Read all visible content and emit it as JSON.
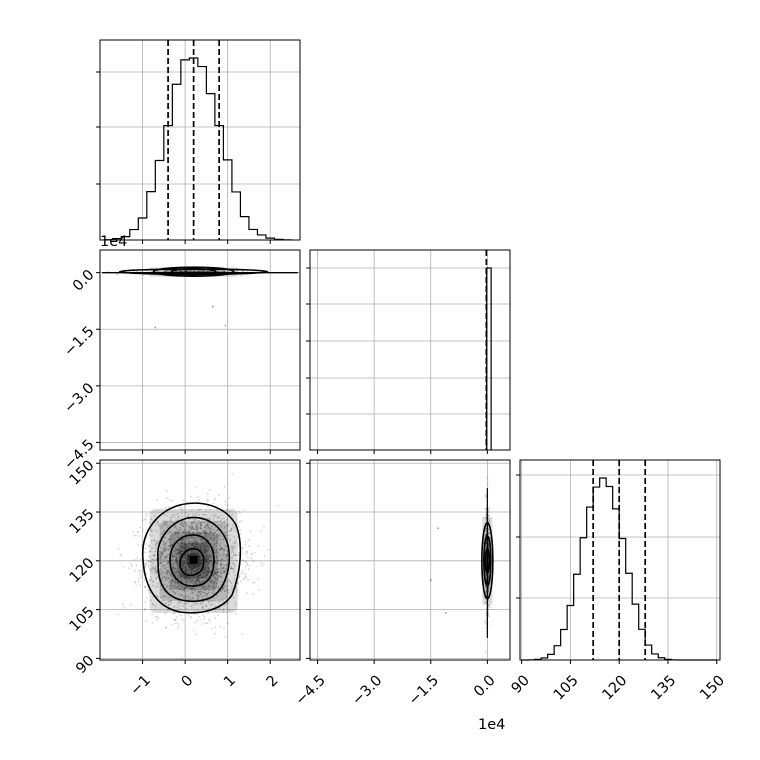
{
  "chart_data": [
    {
      "type": "histogram",
      "panel": "param0-marginal",
      "x": [
        -1.8,
        -1.6,
        -1.4,
        -1.2,
        -1.0,
        -0.8,
        -0.6,
        -0.4,
        -0.2,
        0.0,
        0.2,
        0.4,
        0.6,
        0.8,
        1.0,
        1.2,
        1.4,
        1.6,
        1.8,
        2.0,
        2.2,
        2.4
      ],
      "values": [
        2,
        8,
        20,
        62,
        131,
        288,
        473,
        681,
        927,
        1072,
        1083,
        1032,
        871,
        681,
        477,
        286,
        139,
        63,
        30,
        11,
        4,
        1
      ],
      "quantiles": [
        -0.4,
        0.2,
        0.8
      ],
      "xlim": [
        -2.0,
        2.7
      ],
      "xticks": [
        -1,
        0,
        1,
        2
      ],
      "xtick_labels": [
        "−1",
        "0",
        "1",
        "2"
      ]
    },
    {
      "type": "histogram",
      "panel": "param1-marginal",
      "x": [
        0.0
      ],
      "values": [
        1
      ],
      "quantiles": [
        0.0,
        0.0,
        0.0
      ],
      "xlim": [
        -4.7,
        0.6
      ],
      "xticks": [
        -4.5,
        -3.0,
        -1.5,
        0.0
      ],
      "xtick_labels": [
        "−4.5",
        "−3.0",
        "−1.5",
        "0.0"
      ],
      "offset_label": "1e4"
    },
    {
      "type": "histogram",
      "panel": "param2-marginal",
      "x": [
        91,
        93,
        95,
        97,
        99,
        101,
        103,
        105,
        107,
        109,
        111,
        113,
        115,
        117,
        119,
        121,
        123,
        125,
        127,
        129,
        131,
        133,
        135,
        137,
        139,
        141,
        143,
        145,
        147,
        149
      ],
      "values": [
        0,
        1,
        3,
        10,
        28,
        71,
        151,
        270,
        425,
        606,
        758,
        857,
        902,
        860,
        749,
        602,
        430,
        277,
        152,
        74,
        30,
        11,
        3,
        1,
        0,
        0,
        0,
        0,
        0,
        0
      ],
      "quantiles": [
        112,
        120,
        128
      ],
      "xlim": [
        89.5,
        151
      ],
      "xticks": [
        90,
        105,
        120,
        135,
        150
      ],
      "xtick_labels": [
        "90",
        "105",
        "120",
        "135",
        "150"
      ]
    },
    {
      "type": "scatter-density",
      "panel": "param1-vs-param0",
      "ylim": [
        -4.7,
        0.6
      ],
      "yticks": [
        0.0,
        -1.5,
        -3.0,
        -4.5
      ],
      "ytick_labels": [
        "0.0",
        "−1.5",
        "−3.0",
        "−4.5"
      ],
      "offset_label": "1e4",
      "outliers": [
        [
          -0.7,
          -1.45
        ],
        [
          0.65,
          -0.9
        ],
        [
          0.95,
          -1.4
        ]
      ]
    },
    {
      "type": "scatter-density",
      "panel": "param2-vs-param0",
      "yticks": [
        90,
        105,
        120,
        135,
        150
      ],
      "ytick_labels": [
        "90",
        "105",
        "120",
        "135",
        "150"
      ],
      "center": [
        0.2,
        120
      ],
      "spread": [
        0.55,
        7.8
      ]
    },
    {
      "type": "scatter-density",
      "panel": "param2-vs-param1",
      "center": [
        0.0,
        120
      ],
      "outliers": [
        [
          -1.5,
          114
        ],
        [
          -1.3,
          130
        ],
        [
          -1.1,
          104
        ]
      ]
    }
  ]
}
